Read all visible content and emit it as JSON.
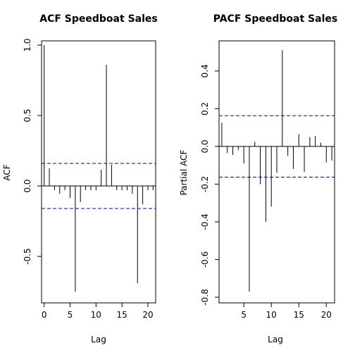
{
  "chart_data": [
    {
      "type": "bar",
      "title": "ACF Speedboat Sales",
      "xlabel": "Lag",
      "ylabel": "ACF",
      "xlim": [
        -0.5,
        21.5
      ],
      "ylim": [
        -0.83,
        1.03
      ],
      "xticks": [
        0,
        5,
        10,
        15,
        20
      ],
      "yticks": [
        -0.5,
        0.0,
        0.5,
        1.0
      ],
      "ytick_labels": [
        "-0.5",
        "0.0",
        "0.5",
        "1.0"
      ],
      "x": [
        0,
        1,
        2,
        3,
        4,
        5,
        6,
        7,
        8,
        9,
        10,
        11,
        12,
        13,
        14,
        15,
        16,
        17,
        18,
        19,
        20,
        21
      ],
      "values": [
        1.0,
        0.125,
        -0.03,
        -0.055,
        -0.03,
        -0.085,
        -0.75,
        -0.115,
        -0.03,
        -0.03,
        -0.03,
        0.115,
        0.86,
        0.15,
        -0.03,
        -0.03,
        -0.03,
        -0.055,
        -0.69,
        -0.13,
        -0.03,
        -0.03
      ],
      "ci": 0.16,
      "ci_color": "#0000cd",
      "grid": false
    },
    {
      "type": "bar",
      "title": "PACF Speedboat Sales",
      "xlabel": "Lag",
      "ylabel": "Partial ACF",
      "xlim": [
        0.5,
        21.5
      ],
      "ylim": [
        -0.83,
        0.56
      ],
      "xticks": [
        5,
        10,
        15,
        20
      ],
      "yticks": [
        -0.8,
        -0.6,
        -0.4,
        -0.2,
        0.0,
        0.2,
        0.4
      ],
      "ytick_labels": [
        "-0.8",
        "-0.6",
        "-0.4",
        "-0.2",
        "0.0",
        "0.2",
        "0.4"
      ],
      "x": [
        1,
        2,
        3,
        4,
        5,
        6,
        7,
        8,
        9,
        10,
        11,
        12,
        13,
        14,
        15,
        16,
        17,
        18,
        19,
        20,
        21
      ],
      "values": [
        0.125,
        -0.035,
        -0.045,
        -0.02,
        -0.09,
        -0.77,
        0.025,
        -0.2,
        -0.4,
        -0.32,
        -0.14,
        0.51,
        -0.05,
        -0.12,
        0.065,
        -0.135,
        0.05,
        0.055,
        0.02,
        -0.085,
        -0.075
      ],
      "ci": 0.163,
      "ci_color": "#0000cd",
      "grid": false
    }
  ]
}
